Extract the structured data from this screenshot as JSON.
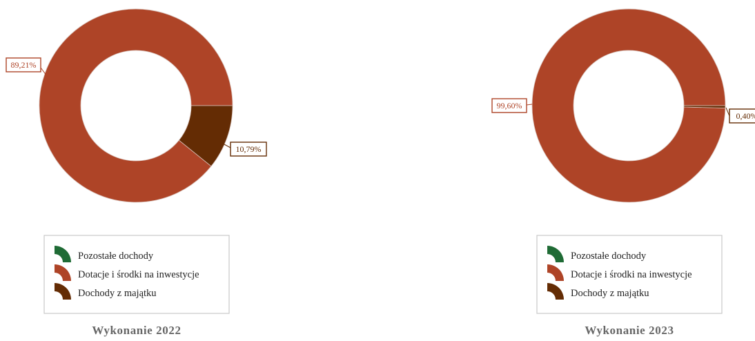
{
  "chart_data": [
    {
      "type": "pie",
      "donut": true,
      "title": "Wykonanie 2022",
      "categories": [
        "Pozostałe dochody",
        "Dotacje i środki na inwestycje",
        "Dochody z majątku"
      ],
      "values": [
        0,
        89.21,
        10.79
      ],
      "labels": [
        "",
        "89,21%",
        "10,79%"
      ],
      "colors": [
        "#1f6b35",
        "#ae4427",
        "#642c04"
      ],
      "legend": "bottom"
    },
    {
      "type": "pie",
      "donut": true,
      "title": "Wykonanie 2023",
      "categories": [
        "Pozostałe dochody",
        "Dotacje i środki na inwestycje",
        "Dochody z majątku"
      ],
      "values": [
        0,
        99.6,
        0.4
      ],
      "labels": [
        "",
        "99,60%",
        "0,40%"
      ],
      "colors": [
        "#1f6b35",
        "#ae4427",
        "#642c04"
      ],
      "legend": "bottom"
    }
  ]
}
